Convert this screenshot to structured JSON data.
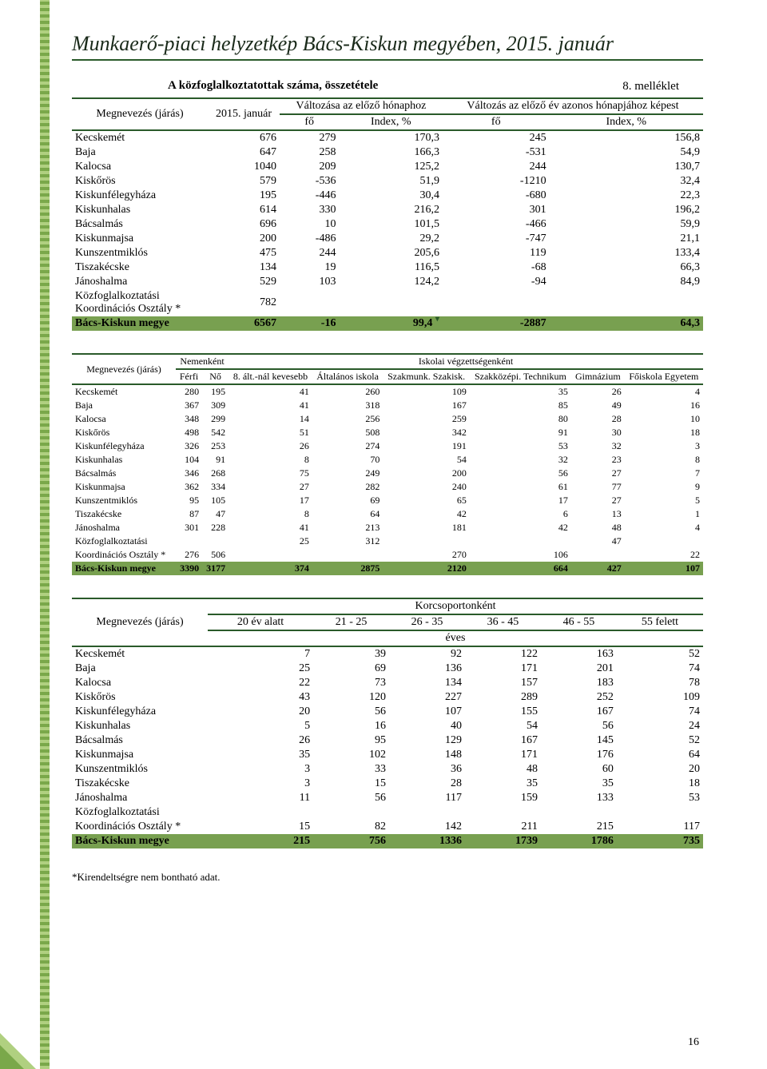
{
  "page": {
    "header": "Munkaerő-piaci helyzetkép Bács-Kiskun megyében, 2015. január",
    "attachment": "8. melléklet",
    "section_title": "A közfoglalkoztatottak száma, összetétele",
    "footnote": "*Kirendeltségre nem bontható adat.",
    "page_number": "16"
  },
  "table1": {
    "head": {
      "col1": "Megnevezés (járás)",
      "col2": "2015. január",
      "grp1": "Változása az előző hónaphoz",
      "grp2": "Változás az előző év azonos hónapjához képest",
      "sub_fo": "fő",
      "sub_index": "Index, %"
    },
    "rows": [
      [
        "Kecskemét",
        "676",
        "279",
        "170,3",
        "245",
        "156,8"
      ],
      [
        "Baja",
        "647",
        "258",
        "166,3",
        "-531",
        "54,9"
      ],
      [
        "Kalocsa",
        "1040",
        "209",
        "125,2",
        "244",
        "130,7"
      ],
      [
        "Kiskőrös",
        "579",
        "-536",
        "51,9",
        "-1210",
        "32,4"
      ],
      [
        "Kiskunfélegyháza",
        "195",
        "-446",
        "30,4",
        "-680",
        "22,3"
      ],
      [
        "Kiskunhalas",
        "614",
        "330",
        "216,2",
        "301",
        "196,2"
      ],
      [
        "Bácsalmás",
        "696",
        "10",
        "101,5",
        "-466",
        "59,9"
      ],
      [
        "Kiskunmajsa",
        "200",
        "-486",
        "29,2",
        "-747",
        "21,1"
      ],
      [
        "Kunszentmiklós",
        "475",
        "244",
        "205,6",
        "119",
        "133,4"
      ],
      [
        "Tiszakécske",
        "134",
        "19",
        "116,5",
        "-68",
        "66,3"
      ],
      [
        "Jánoshalma",
        "529",
        "103",
        "124,2",
        "-94",
        "84,9"
      ],
      [
        "Közfoglalkoztatási Koordinációs Osztály *",
        "782",
        "",
        "",
        "",
        ""
      ]
    ],
    "total": [
      "Bács-Kiskun megye",
      "6567",
      "-16",
      "99,4",
      "-2887",
      "64,3"
    ]
  },
  "table2": {
    "head": {
      "col1": "Megnevezés (járás)",
      "grp1": "Nemenként",
      "grp2": "Iskolai végzettségenként",
      "s_ferfi": "Férfi",
      "s_no": "Nő",
      "s_8alt": "8. ált.-nál kevesebb",
      "s_alt": "Általános iskola",
      "s_szakm": "Szakmunk. Szakisk.",
      "s_szakk": "Szakközépi. Technikum",
      "s_gimn": "Gimnázium",
      "s_fo": "Főiskola Egyetem"
    },
    "rows": [
      [
        "Kecskemét",
        "280",
        "195",
        "41",
        "260",
        "109",
        "35",
        "26",
        "4"
      ],
      [
        "Baja",
        "367",
        "309",
        "41",
        "318",
        "167",
        "85",
        "49",
        "16"
      ],
      [
        "Kalocsa",
        "348",
        "299",
        "14",
        "256",
        "259",
        "80",
        "28",
        "10"
      ],
      [
        "Kiskőrös",
        "498",
        "542",
        "51",
        "508",
        "342",
        "91",
        "30",
        "18"
      ],
      [
        "Kiskunfélegyháza",
        "326",
        "253",
        "26",
        "274",
        "191",
        "53",
        "32",
        "3"
      ],
      [
        "Kiskunhalas",
        "104",
        "91",
        "8",
        "70",
        "54",
        "32",
        "23",
        "8"
      ],
      [
        "Bácsalmás",
        "346",
        "268",
        "75",
        "249",
        "200",
        "56",
        "27",
        "7"
      ],
      [
        "Kiskunmajsa",
        "362",
        "334",
        "27",
        "282",
        "240",
        "61",
        "77",
        "9"
      ],
      [
        "Kunszentmiklós",
        "95",
        "105",
        "17",
        "69",
        "65",
        "17",
        "27",
        "5"
      ],
      [
        "Tiszakécske",
        "87",
        "47",
        "8",
        "64",
        "42",
        "6",
        "13",
        "1"
      ],
      [
        "Jánoshalma",
        "301",
        "228",
        "41",
        "213",
        "181",
        "42",
        "48",
        "4"
      ],
      [
        "Közfoglalkoztatási",
        "",
        "",
        "25",
        "312",
        "",
        "",
        "47",
        ""
      ],
      [
        "Koordinációs Osztály *",
        "276",
        "506",
        "",
        "",
        "270",
        "106",
        "",
        "22"
      ]
    ],
    "total": [
      "Bács-Kiskun megye",
      "3390",
      "3177",
      "374",
      "2875",
      "2120",
      "664",
      "427",
      "107"
    ]
  },
  "table3": {
    "head": {
      "col1": "Megnevezés (járás)",
      "grp": "Korcsoportonként",
      "s1": "20 év alatt",
      "s2": "21 - 25",
      "s3": "26 - 35",
      "s4": "36 - 45",
      "s5": "46 - 55",
      "s6": "55 felett",
      "unit": "éves"
    },
    "rows": [
      [
        "Kecskemét",
        "7",
        "39",
        "92",
        "122",
        "163",
        "52"
      ],
      [
        "Baja",
        "25",
        "69",
        "136",
        "171",
        "201",
        "74"
      ],
      [
        "Kalocsa",
        "22",
        "73",
        "134",
        "157",
        "183",
        "78"
      ],
      [
        "Kiskőrös",
        "43",
        "120",
        "227",
        "289",
        "252",
        "109"
      ],
      [
        "Kiskunfélegyháza",
        "20",
        "56",
        "107",
        "155",
        "167",
        "74"
      ],
      [
        "Kiskunhalas",
        "5",
        "16",
        "40",
        "54",
        "56",
        "24"
      ],
      [
        "Bácsalmás",
        "26",
        "95",
        "129",
        "167",
        "145",
        "52"
      ],
      [
        "Kiskunmajsa",
        "35",
        "102",
        "148",
        "171",
        "176",
        "64"
      ],
      [
        "Kunszentmiklós",
        "3",
        "33",
        "36",
        "48",
        "60",
        "20"
      ],
      [
        "Tiszakécske",
        "3",
        "15",
        "28",
        "35",
        "35",
        "18"
      ],
      [
        "Jánoshalma",
        "11",
        "56",
        "117",
        "159",
        "133",
        "53"
      ],
      [
        "Közfoglalkoztatási",
        "",
        "",
        "",
        "",
        "",
        ""
      ],
      [
        "Koordinációs Osztály *",
        "15",
        "82",
        "142",
        "211",
        "215",
        "117"
      ]
    ],
    "total": [
      "Bács-Kiskun megye",
      "215",
      "756",
      "1336",
      "1739",
      "1786",
      "735"
    ]
  }
}
